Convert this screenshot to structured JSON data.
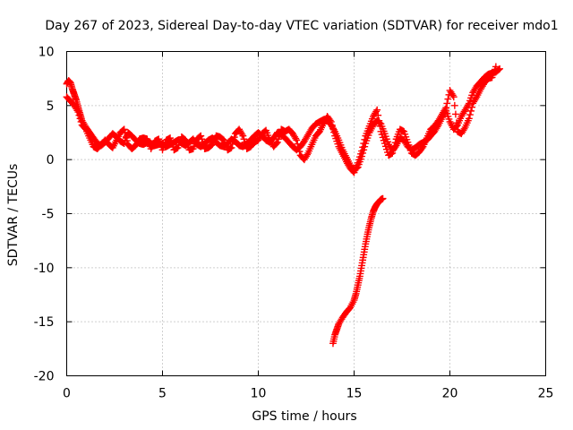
{
  "chart_data": {
    "type": "scatter",
    "title": "Day 267 of 2023, Sidereal Day-to-day VTEC variation (SDTVAR) for receiver mdo1",
    "xlabel": "GPS time / hours",
    "ylabel": "SDTVAR / TECUs",
    "xlim": [
      0,
      25
    ],
    "ylim": [
      -20,
      10
    ],
    "xticks": [
      0,
      5,
      10,
      15,
      20,
      25
    ],
    "yticks": [
      -20,
      -15,
      -10,
      -5,
      0,
      5,
      10
    ],
    "xtick_labels": [
      "0",
      "5",
      "10",
      "15",
      "20",
      "25"
    ],
    "ytick_labels": [
      "-20",
      "-15",
      "-10",
      "-5",
      "0",
      "5",
      "10"
    ],
    "grid": true,
    "marker": "plus",
    "color": "#ff0000",
    "series": [
      {
        "name": "main-track",
        "x": [
          0.0,
          0.1,
          0.2,
          0.3,
          0.4,
          0.5,
          0.6,
          0.7,
          0.8,
          1.0,
          1.2,
          1.4,
          1.6,
          1.8,
          2.0,
          2.2,
          2.4,
          2.6,
          2.8,
          3.0,
          3.2,
          3.4,
          3.6,
          3.8,
          4.0,
          4.2,
          4.4,
          4.6,
          4.8,
          5.0,
          5.2,
          5.4,
          5.6,
          5.8,
          6.0,
          6.2,
          6.4,
          6.6,
          6.8,
          7.0,
          7.2,
          7.4,
          7.6,
          7.8,
          8.0,
          8.2,
          8.4,
          8.6,
          8.8,
          9.0,
          9.2,
          9.4,
          9.6,
          9.8,
          10.0,
          10.2,
          10.4,
          10.6,
          10.8,
          11.0,
          11.2,
          11.4,
          11.6,
          11.8,
          12.0,
          12.2,
          12.4,
          12.6,
          12.8,
          13.0,
          13.2,
          13.4,
          13.6,
          13.8,
          14.0,
          14.2,
          14.4,
          14.6,
          14.8,
          15.0,
          15.2,
          15.4,
          15.6,
          15.8,
          16.0,
          16.2,
          16.4,
          16.6,
          16.8,
          17.0,
          17.2,
          17.4,
          17.6,
          17.8,
          18.0,
          18.2,
          18.4,
          18.6,
          18.8,
          19.0,
          19.2,
          19.4,
          19.6,
          19.8,
          20.0,
          20.2,
          20.4,
          20.6,
          20.8,
          21.0,
          21.2,
          21.4,
          21.6,
          21.8,
          22.0,
          22.2,
          22.4,
          22.6
        ],
        "y": [
          7.0,
          7.3,
          7.1,
          6.5,
          6.0,
          5.5,
          4.8,
          4.2,
          3.6,
          3.0,
          2.5,
          2.0,
          1.5,
          1.3,
          1.6,
          2.0,
          2.4,
          2.1,
          1.7,
          1.5,
          2.5,
          2.2,
          1.8,
          1.5,
          1.4,
          1.6,
          1.5,
          1.3,
          1.4,
          1.5,
          1.2,
          1.4,
          1.6,
          1.8,
          1.5,
          1.3,
          1.6,
          1.9,
          1.4,
          1.2,
          1.5,
          1.8,
          2.0,
          1.6,
          1.3,
          1.2,
          1.5,
          1.9,
          1.7,
          1.3,
          1.2,
          1.5,
          1.8,
          2.2,
          2.5,
          2.2,
          1.8,
          1.6,
          2.0,
          2.5,
          2.3,
          2.0,
          1.6,
          1.2,
          0.9,
          1.2,
          1.7,
          2.3,
          2.9,
          3.3,
          3.5,
          3.7,
          3.6,
          3.2,
          2.6,
          1.8,
          0.9,
          0.2,
          -0.5,
          -1.0,
          -0.7,
          0.3,
          1.5,
          2.5,
          3.2,
          3.6,
          3.3,
          2.4,
          1.4,
          0.8,
          1.3,
          2.0,
          1.8,
          1.2,
          0.9,
          1.1,
          1.4,
          1.6,
          1.8,
          2.2,
          2.6,
          3.2,
          3.9,
          4.5,
          3.5,
          2.8,
          3.2,
          4.0,
          4.6,
          5.2,
          6.2,
          6.8,
          7.2,
          7.6,
          7.9,
          8.0,
          8.1,
          8.4
        ]
      },
      {
        "name": "main-track-band",
        "x": [
          0.0,
          0.2,
          0.4,
          0.6,
          0.8,
          1.0,
          1.2,
          1.4,
          1.6,
          1.8,
          2.0,
          2.2,
          2.4,
          2.6,
          2.8,
          3.0,
          3.2,
          3.4,
          3.6,
          3.8,
          4.0,
          4.2,
          4.4,
          4.6,
          4.8,
          5.0,
          5.2,
          5.4,
          5.6,
          5.8,
          6.0,
          6.2,
          6.4,
          6.6,
          6.8,
          7.0,
          7.2,
          7.4,
          7.6,
          7.8,
          8.0,
          8.2,
          8.4,
          8.6,
          8.8,
          9.0,
          9.2,
          9.4,
          9.6,
          9.8,
          10.0,
          10.2,
          10.4,
          10.6,
          10.8,
          11.0,
          11.2,
          11.4,
          11.6,
          11.8,
          12.0,
          12.2,
          12.4,
          12.6,
          12.8,
          13.0,
          13.2,
          13.4,
          13.6,
          13.8,
          14.0,
          14.2,
          14.4,
          14.6,
          14.8,
          15.0,
          15.2,
          15.4,
          15.6,
          15.8,
          16.0,
          16.2,
          16.4,
          16.6,
          16.8,
          17.0,
          17.2,
          17.4,
          17.6,
          17.8,
          18.0,
          18.2,
          18.4,
          18.6,
          18.8,
          19.0,
          19.2,
          19.4,
          19.6,
          19.8,
          20.0,
          20.2,
          20.4,
          20.6,
          20.8,
          21.0,
          21.2,
          21.4,
          21.6,
          21.8,
          22.0,
          22.2,
          22.4
        ],
        "y": [
          5.8,
          5.4,
          5.0,
          4.4,
          3.2,
          2.8,
          2.0,
          1.2,
          1.0,
          1.4,
          1.8,
          1.4,
          1.1,
          1.8,
          2.5,
          2.8,
          1.4,
          1.0,
          1.3,
          1.9,
          2.0,
          1.9,
          1.0,
          1.7,
          1.9,
          0.9,
          1.8,
          2.0,
          0.9,
          1.1,
          2.1,
          1.8,
          0.9,
          1.0,
          1.9,
          2.2,
          1.0,
          1.1,
          1.4,
          2.2,
          2.1,
          1.8,
          0.9,
          1.1,
          2.4,
          2.8,
          2.2,
          1.0,
          1.2,
          1.6,
          1.8,
          2.4,
          2.7,
          1.8,
          1.2,
          1.6,
          2.8,
          2.6,
          2.8,
          2.4,
          1.8,
          0.4,
          0.0,
          0.6,
          1.4,
          2.2,
          2.6,
          3.3,
          4.0,
          3.5,
          2.2,
          1.2,
          0.5,
          -0.2,
          -0.8,
          -1.2,
          -0.3,
          0.8,
          2.2,
          3.1,
          4.0,
          4.6,
          2.6,
          1.5,
          0.4,
          0.6,
          1.9,
          2.8,
          2.6,
          1.6,
          0.6,
          0.4,
          0.7,
          1.2,
          2.0,
          2.8,
          3.1,
          3.6,
          4.2,
          4.8,
          6.4,
          5.8,
          2.6,
          2.4,
          3.0,
          3.8,
          5.2,
          5.8,
          6.5,
          7.1,
          7.5,
          7.6,
          8.6
        ]
      },
      {
        "name": "descending-arc",
        "x": [
          13.9,
          14.0,
          14.1,
          14.2,
          14.4,
          14.6,
          14.8,
          15.0,
          15.1,
          15.2,
          15.3,
          15.4,
          15.5,
          15.6,
          15.7,
          15.8,
          15.9,
          16.0,
          16.1,
          16.2,
          16.3,
          16.4,
          16.5
        ],
        "y": [
          -17.0,
          -16.2,
          -15.7,
          -15.2,
          -14.6,
          -14.1,
          -13.7,
          -13.0,
          -12.4,
          -11.6,
          -10.8,
          -9.8,
          -8.8,
          -7.8,
          -6.9,
          -6.1,
          -5.4,
          -4.8,
          -4.4,
          -4.1,
          -3.9,
          -3.7,
          -3.6
        ]
      }
    ]
  }
}
